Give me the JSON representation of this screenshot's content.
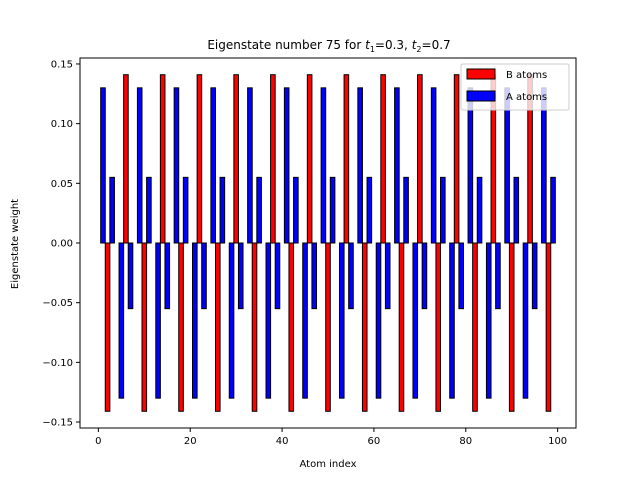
{
  "chart_data": {
    "type": "bar",
    "title_prefix": "Eigenstate number 75 for ",
    "title_t1_var": "t",
    "title_t1_sub": "1",
    "title_t1_val": "=0.3, ",
    "title_t2_var": "t",
    "title_t2_sub": "2",
    "title_t2_val": "=0.7",
    "xlabel": "Atom index",
    "ylabel": "Eigenstate weight",
    "xlim": [
      -4,
      104
    ],
    "ylim": [
      -0.155,
      0.155
    ],
    "xticks": [
      0,
      20,
      40,
      60,
      80,
      100
    ],
    "yticks": [
      -0.15,
      -0.1,
      -0.05,
      0.0,
      0.05,
      0.1,
      0.15
    ],
    "ytick_labels": [
      "−0.15",
      "−0.10",
      "−0.05",
      "0.00",
      "0.05",
      "0.10",
      "0.15"
    ],
    "xtick_labels": [
      "0",
      "20",
      "40",
      "60",
      "80",
      "100"
    ],
    "bar_width": 1,
    "legend_position": "top-right",
    "series": [
      {
        "name": "B atoms",
        "color": "#ff0000",
        "edgecolor": "#000000",
        "x": [
          2,
          6,
          10,
          14,
          18,
          22,
          26,
          30,
          34,
          38,
          42,
          46,
          50,
          54,
          58,
          62,
          66,
          70,
          74,
          78,
          82,
          86,
          90,
          94,
          98
        ],
        "values": [
          -0.141,
          0.141,
          -0.141,
          0.141,
          -0.141,
          0.141,
          -0.141,
          0.141,
          -0.141,
          0.141,
          -0.141,
          0.141,
          -0.141,
          0.141,
          -0.141,
          0.141,
          -0.141,
          0.141,
          -0.141,
          0.141,
          -0.141,
          0.141,
          -0.141,
          0.141,
          -0.141
        ]
      },
      {
        "name": "A atoms",
        "color": "#0000ff",
        "edgecolor": "#000000",
        "x": [
          1,
          3,
          5,
          7,
          9,
          11,
          13,
          15,
          17,
          19,
          21,
          23,
          25,
          27,
          29,
          31,
          33,
          35,
          37,
          39,
          41,
          43,
          45,
          47,
          49,
          51,
          53,
          55,
          57,
          59,
          61,
          63,
          65,
          67,
          69,
          71,
          73,
          75,
          77,
          79,
          81,
          83,
          85,
          87,
          89,
          91,
          93,
          95,
          97,
          99
        ],
        "values": [
          0.13,
          0.055,
          -0.13,
          -0.055,
          0.13,
          0.055,
          -0.13,
          -0.055,
          0.13,
          0.055,
          -0.13,
          -0.055,
          0.13,
          0.055,
          -0.13,
          -0.055,
          0.13,
          0.055,
          -0.13,
          -0.055,
          0.13,
          0.055,
          -0.13,
          -0.055,
          0.13,
          0.055,
          -0.13,
          -0.055,
          0.13,
          0.055,
          -0.13,
          -0.055,
          0.13,
          0.055,
          -0.13,
          -0.055,
          0.13,
          0.055,
          -0.13,
          -0.055,
          0.13,
          0.055,
          -0.13,
          -0.055,
          0.13,
          0.055,
          -0.13,
          -0.055,
          0.13,
          0.055
        ]
      }
    ]
  }
}
